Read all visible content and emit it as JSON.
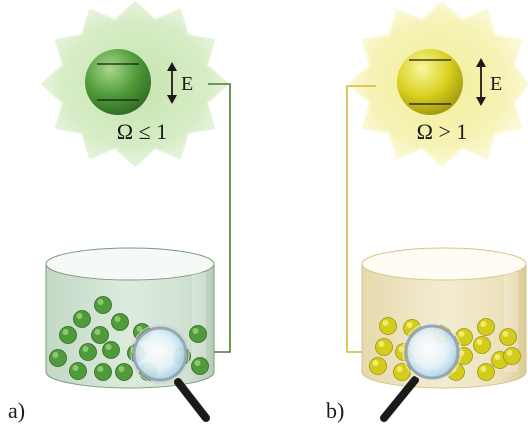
{
  "panels": [
    {
      "id": "a",
      "label": "a)",
      "condition": "Ω ≤ 1",
      "energy_symbol": "E",
      "colors": {
        "burst_fill": "#c9e6b3",
        "burst_edge": "#e4f2d8",
        "particle": "#4f9a3a",
        "particle_light": "#9fd27c",
        "particle_dark": "#2f6a22",
        "line": "#4a7a2e",
        "beaker_fill": "#dbe8dd",
        "beaker_stroke": "#7d9a7d"
      }
    },
    {
      "id": "b",
      "label": "b)",
      "condition": "Ω > 1",
      "energy_symbol": "E",
      "colors": {
        "burst_fill": "#f3f0a0",
        "burst_edge": "#fbf9d4",
        "particle": "#d4cc1c",
        "particle_light": "#f7f27a",
        "particle_dark": "#9c960d",
        "line": "#d8b63a",
        "beaker_fill": "#efe7c8",
        "beaker_stroke": "#d6c48a"
      }
    }
  ],
  "icons": {
    "magnifier": "magnifier-icon",
    "energy_arrow": "double-arrow-icon"
  }
}
